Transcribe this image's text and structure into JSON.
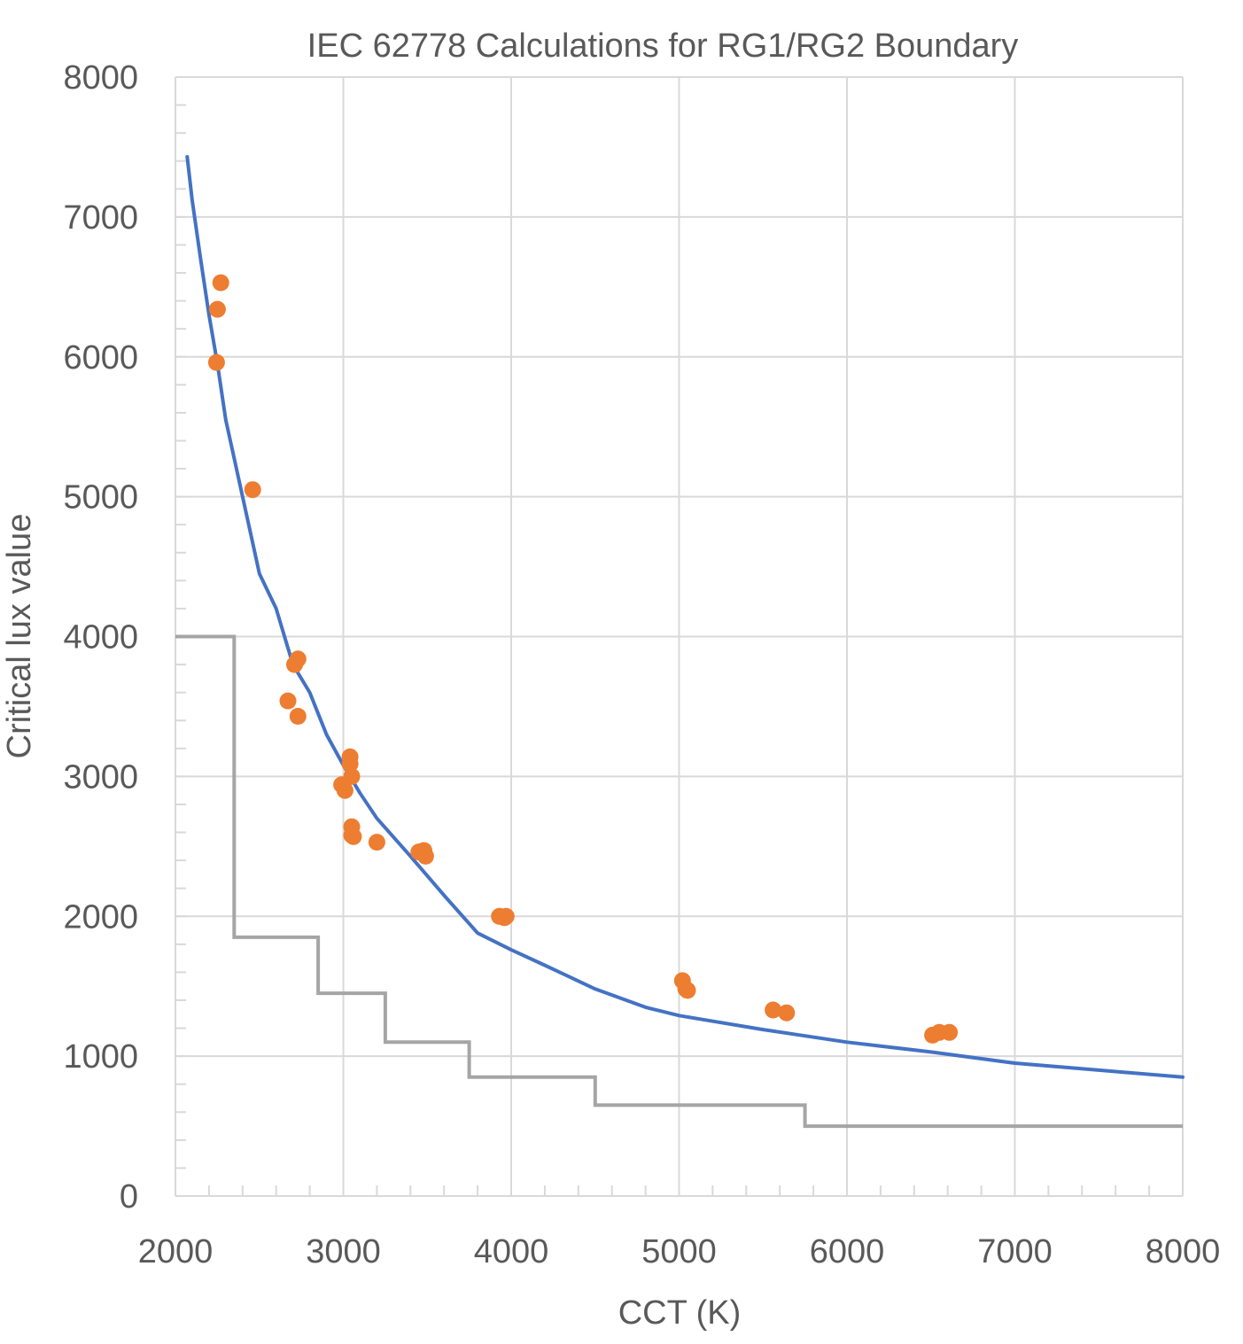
{
  "chart_data": {
    "type": "scatter",
    "title": "IEC 62778 Calculations for RG1/RG2 Boundary",
    "xlabel": "CCT (K)",
    "ylabel": "Critical lux value",
    "xlim": [
      2000,
      8000
    ],
    "ylim": [
      0,
      8000
    ],
    "x_ticks": [
      "2000",
      "3000",
      "4000",
      "5000",
      "6000",
      "7000",
      "8000"
    ],
    "y_ticks": [
      "0",
      "1000",
      "2000",
      "3000",
      "4000",
      "5000",
      "6000",
      "7000",
      "8000"
    ],
    "x_minor_step": 200,
    "y_minor_step": 200,
    "grid": true,
    "legend": "none",
    "colors": {
      "curve": "#4472C4",
      "points": "#ED7D31",
      "step": "#A5A5A5",
      "grid": "#D9D9D9",
      "text": "#595959"
    },
    "series": [
      {
        "type": "line",
        "role": "curve",
        "points": [
          [
            2070,
            7430
          ],
          [
            2100,
            7120
          ],
          [
            2150,
            6700
          ],
          [
            2200,
            6300
          ],
          [
            2250,
            5950
          ],
          [
            2300,
            5550
          ],
          [
            2400,
            5000
          ],
          [
            2500,
            4450
          ],
          [
            2600,
            4200
          ],
          [
            2700,
            3800
          ],
          [
            2800,
            3600
          ],
          [
            2900,
            3300
          ],
          [
            3000,
            3080
          ],
          [
            3100,
            2880
          ],
          [
            3200,
            2700
          ],
          [
            3400,
            2430
          ],
          [
            3600,
            2150
          ],
          [
            3800,
            1880
          ],
          [
            4000,
            1760
          ],
          [
            4200,
            1650
          ],
          [
            4500,
            1480
          ],
          [
            4800,
            1350
          ],
          [
            5000,
            1290
          ],
          [
            5500,
            1190
          ],
          [
            6000,
            1100
          ],
          [
            6500,
            1030
          ],
          [
            7000,
            950
          ],
          [
            7500,
            900
          ],
          [
            8000,
            850
          ]
        ]
      },
      {
        "type": "scatter",
        "role": "points",
        "points": [
          [
            2270,
            6530
          ],
          [
            2250,
            6340
          ],
          [
            2245,
            5960
          ],
          [
            2460,
            5050
          ],
          [
            2730,
            3840
          ],
          [
            2710,
            3800
          ],
          [
            2670,
            3540
          ],
          [
            2730,
            3430
          ],
          [
            3040,
            3140
          ],
          [
            3040,
            3090
          ],
          [
            3050,
            3000
          ],
          [
            2990,
            2940
          ],
          [
            3010,
            2900
          ],
          [
            3050,
            2640
          ],
          [
            3050,
            2580
          ],
          [
            3060,
            2570
          ],
          [
            3200,
            2530
          ],
          [
            3450,
            2460
          ],
          [
            3480,
            2470
          ],
          [
            3490,
            2430
          ],
          [
            3930,
            2000
          ],
          [
            3960,
            1990
          ],
          [
            3970,
            2000
          ],
          [
            5020,
            1540
          ],
          [
            5040,
            1480
          ],
          [
            5050,
            1470
          ],
          [
            5560,
            1330
          ],
          [
            5640,
            1310
          ],
          [
            6510,
            1150
          ],
          [
            6550,
            1170
          ],
          [
            6610,
            1170
          ]
        ]
      },
      {
        "type": "step",
        "role": "step",
        "points": [
          [
            2000,
            4000
          ],
          [
            2350,
            4000
          ],
          [
            2350,
            1850
          ],
          [
            2850,
            1850
          ],
          [
            2850,
            1450
          ],
          [
            3250,
            1450
          ],
          [
            3250,
            1100
          ],
          [
            3750,
            1100
          ],
          [
            3750,
            850
          ],
          [
            4500,
            850
          ],
          [
            4500,
            650
          ],
          [
            5750,
            650
          ],
          [
            5750,
            500
          ],
          [
            8000,
            500
          ]
        ]
      }
    ]
  }
}
